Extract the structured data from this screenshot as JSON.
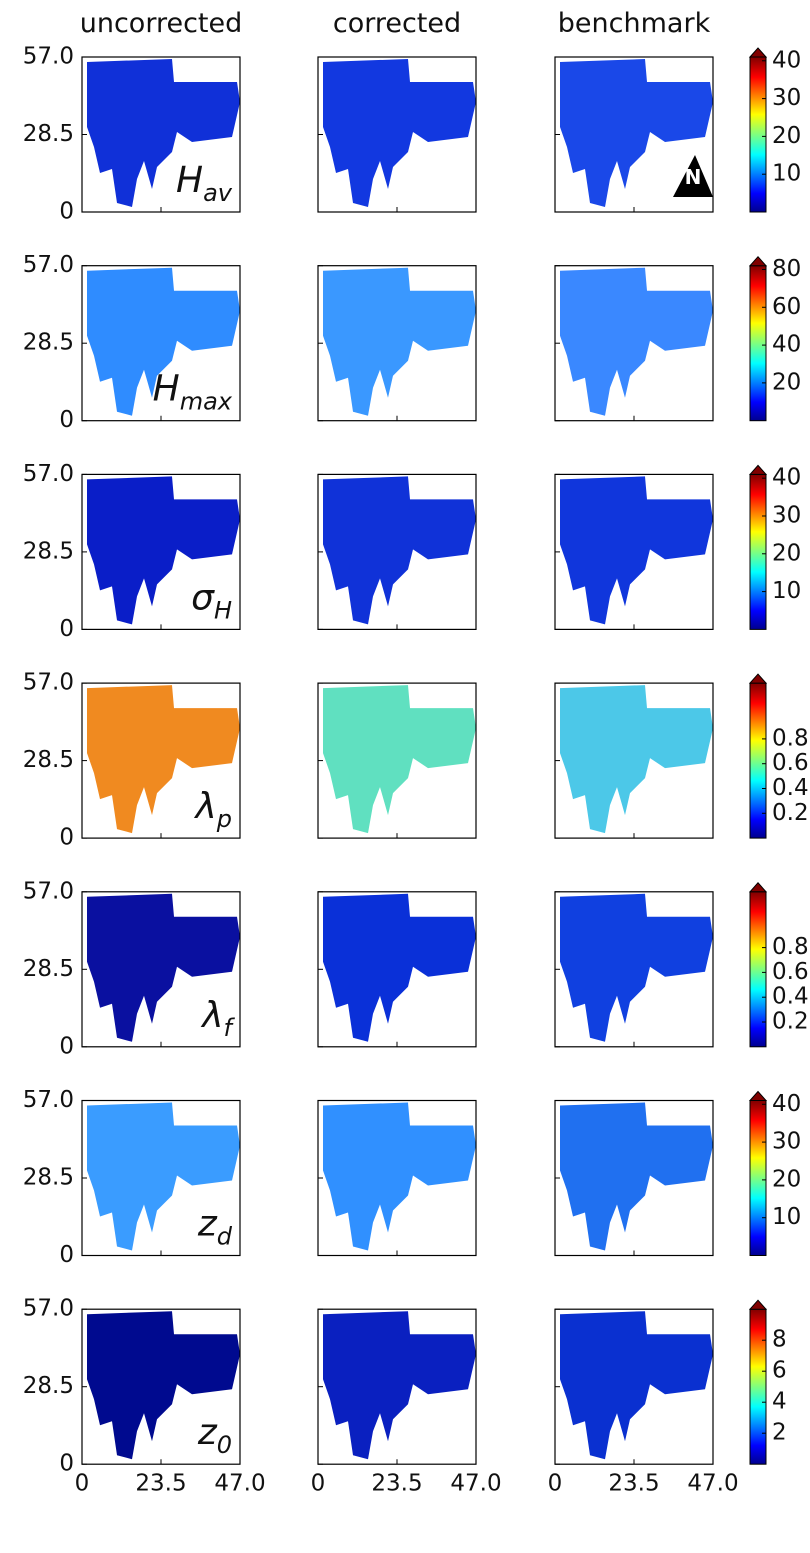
{
  "column_titles": [
    "uncorrected",
    "corrected",
    "benchmark"
  ],
  "north_arrow": "N",
  "axes": {
    "xlim": [
      0,
      47
    ],
    "ylim": [
      0,
      57
    ],
    "xticks": [
      0,
      23.5,
      {
        "value": 47,
        "label": "47.0"
      }
    ],
    "yticks": [
      0,
      28.5,
      {
        "value": 57,
        "label": "57.0"
      }
    ]
  },
  "chart_data": [
    {
      "type": "map",
      "variable": "H",
      "subscript": "av",
      "colors": [
        "#1030d8",
        "#1238e0",
        "#1a48e8"
      ],
      "colorbar": {
        "lim": [
          0,
          41
        ],
        "ticks": [
          10,
          20,
          30,
          40
        ]
      }
    },
    {
      "type": "map",
      "variable": "H",
      "subscript": "max",
      "colors": [
        "#2f8cff",
        "#3a98ff",
        "#3a88ff"
      ],
      "colorbar": {
        "lim": [
          0,
          82
        ],
        "ticks": [
          20,
          40,
          60,
          80
        ]
      }
    },
    {
      "type": "map",
      "variable": "σ",
      "subscript": "H",
      "colors": [
        "#0a1ec8",
        "#1032d8",
        "#1036dc"
      ],
      "colorbar": {
        "lim": [
          0,
          41
        ],
        "ticks": [
          10,
          20,
          30,
          40
        ]
      }
    },
    {
      "type": "map",
      "variable": "λ",
      "subscript": "p",
      "colors": [
        "#f08a20",
        "#60e0c0",
        "#4cc8e8"
      ],
      "colorbar": {
        "lim": [
          0,
          1.25
        ],
        "ticks": [
          0.2,
          0.4,
          0.6,
          0.8
        ]
      }
    },
    {
      "type": "map",
      "variable": "λ",
      "subscript": "f",
      "colors": [
        "#0a10a0",
        "#0a30d8",
        "#1040e0"
      ],
      "colorbar": {
        "lim": [
          0,
          1.25
        ],
        "ticks": [
          0.2,
          0.4,
          0.6,
          0.8
        ]
      }
    },
    {
      "type": "map",
      "variable": "z",
      "subscript": "d",
      "colors": [
        "#3a9cff",
        "#3090ff",
        "#2070f0"
      ],
      "colorbar": {
        "lim": [
          0,
          41
        ],
        "ticks": [
          10,
          20,
          30,
          40
        ]
      }
    },
    {
      "type": "map",
      "variable": "z",
      "subscript": "0",
      "colors": [
        "#000a8f",
        "#0a20c0",
        "#0a30d0"
      ],
      "colorbar": {
        "lim": [
          0,
          10
        ],
        "ticks": [
          2,
          4,
          6,
          8
        ]
      }
    }
  ]
}
